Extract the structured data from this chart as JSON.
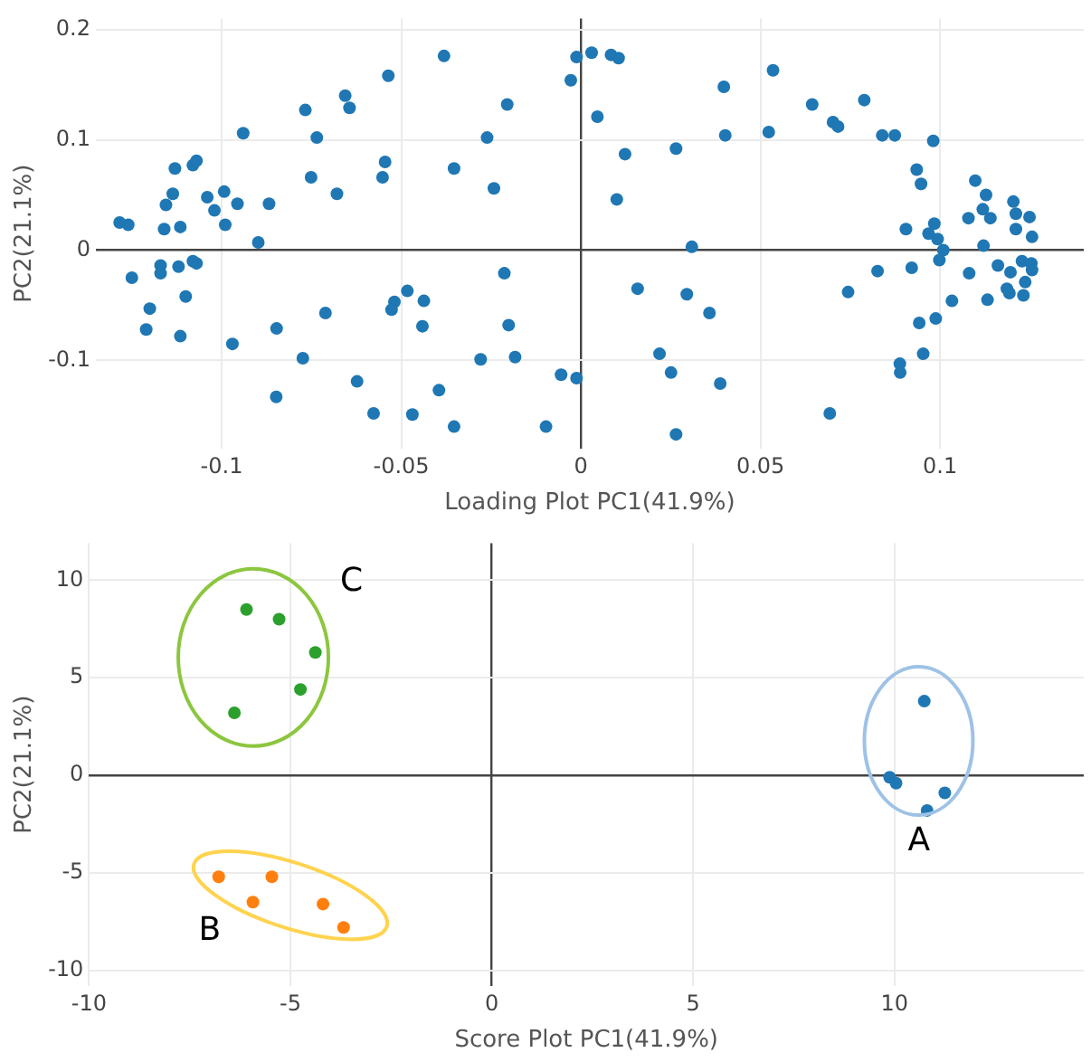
{
  "chart_data": [
    {
      "type": "scatter",
      "xlabel": "Loading Plot PC1(41.9%)",
      "ylabel": "PC2(21.1%)",
      "xlim": [
        -0.135,
        0.14
      ],
      "ylim": [
        -0.18,
        0.21
      ],
      "xticks": [
        -0.1,
        -0.05,
        0,
        0.05,
        0.1
      ],
      "yticks": [
        -0.1,
        0,
        0.1,
        0.2
      ],
      "grid": true,
      "legend": false,
      "marker": "circle",
      "series": [
        {
          "color": "#1f77b4",
          "x": [
            -0.1284,
            -0.126,
            -0.125,
            -0.12,
            -0.121,
            -0.113,
            -0.1155,
            -0.1136,
            -0.116,
            -0.1115,
            -0.117,
            -0.117,
            -0.112,
            -0.11,
            -0.1115,
            -0.108,
            -0.107,
            -0.108,
            -0.107,
            -0.104,
            -0.102,
            -0.0993,
            -0.099,
            -0.0956,
            -0.094,
            -0.097,
            -0.0898,
            -0.0868,
            -0.0847,
            -0.0848,
            -0.0767,
            -0.0735,
            -0.0751,
            -0.0774,
            -0.0711,
            -0.0679,
            -0.0656,
            -0.0644,
            -0.0623,
            -0.0577,
            -0.0536,
            -0.0545,
            -0.0552,
            -0.0483,
            -0.0519,
            -0.0527,
            -0.0437,
            -0.0441,
            -0.0469,
            -0.0381,
            -0.0353,
            -0.0395,
            -0.0353,
            -0.0261,
            -0.0242,
            -0.0279,
            -0.0205,
            -0.0213,
            -0.0201,
            -0.0183,
            -0.0097,
            -0.0055,
            -0.0012,
            -0.0028,
            -0.0012,
            0.003,
            0.0084,
            0.0105,
            0.0046,
            0.0123,
            0.01,
            0.0265,
            0.0309,
            0.0158,
            0.0295,
            0.0358,
            0.0219,
            0.0251,
            0.0388,
            0.0265,
            0.0398,
            0.0402,
            0.0523,
            0.0535,
            0.0644,
            0.0702,
            0.0716,
            0.0789,
            0.0839,
            0.0874,
            0.0981,
            0.0935,
            0.0947,
            0.1098,
            0.1128,
            0.1119,
            0.114,
            0.1079,
            0.1204,
            0.1211,
            0.1249,
            0.1211,
            0.1256,
            0.0905,
            0.0984,
            0.0968,
            0.0993,
            0.1009,
            0.0998,
            0.1121,
            0.0826,
            0.0921,
            0.0744,
            0.1081,
            0.1161,
            0.1196,
            0.1228,
            0.1254,
            0.1256,
            0.1237,
            0.1186,
            0.1193,
            0.1232,
            0.1132,
            0.1033,
            0.0942,
            0.0988,
            0.0953,
            0.0888,
            0.0889,
            0.0693
          ],
          "values": [
            0.025,
            0.023,
            -0.025,
            -0.053,
            -0.072,
            0.074,
            0.041,
            0.051,
            0.019,
            0.021,
            -0.014,
            -0.021,
            -0.015,
            -0.042,
            -0.078,
            0.077,
            0.081,
            -0.01,
            -0.012,
            0.048,
            0.036,
            0.053,
            0.023,
            0.042,
            0.106,
            -0.085,
            0.007,
            0.042,
            -0.071,
            -0.133,
            0.127,
            0.102,
            0.066,
            -0.098,
            -0.057,
            0.051,
            0.14,
            0.129,
            -0.119,
            -0.148,
            0.158,
            0.08,
            0.066,
            -0.037,
            -0.047,
            -0.054,
            -0.046,
            -0.069,
            -0.149,
            0.176,
            0.074,
            -0.127,
            -0.16,
            0.102,
            0.056,
            -0.099,
            0.132,
            -0.021,
            -0.068,
            -0.097,
            -0.16,
            -0.113,
            -0.116,
            0.154,
            0.175,
            0.179,
            0.177,
            0.174,
            0.121,
            0.087,
            0.046,
            0.092,
            0.003,
            -0.035,
            -0.04,
            -0.057,
            -0.094,
            -0.111,
            -0.121,
            -0.167,
            0.148,
            0.104,
            0.107,
            0.163,
            0.132,
            0.116,
            0.112,
            0.136,
            0.104,
            0.104,
            0.099,
            0.073,
            0.06,
            0.063,
            0.05,
            0.037,
            0.029,
            0.029,
            0.044,
            0.033,
            0.03,
            0.019,
            0.012,
            0.019,
            0.024,
            0.015,
            0.01,
            0,
            -0.009,
            0.004,
            -0.019,
            -0.016,
            -0.038,
            -0.021,
            -0.014,
            -0.02,
            -0.01,
            -0.012,
            -0.018,
            -0.029,
            -0.035,
            -0.039,
            -0.041,
            -0.045,
            -0.046,
            -0.066,
            -0.062,
            -0.094,
            -0.103,
            -0.111,
            -0.148
          ]
        }
      ]
    },
    {
      "type": "scatter",
      "xlabel": "Score Plot PC1(41.9%)",
      "ylabel": "PC2(21.1%)",
      "xlim": [
        -10,
        14.7
      ],
      "ylim": [
        -10.8,
        11.9
      ],
      "xticks": [
        -10,
        -5,
        0,
        5,
        10
      ],
      "yticks": [
        -10,
        -5,
        0,
        5,
        10
      ],
      "grid": true,
      "legend": false,
      "marker": "circle",
      "series": [
        {
          "name": "A",
          "color": "#1f77b4",
          "x": [
            10.74,
            9.88,
            10.04,
            11.25,
            10.81
          ],
          "values": [
            3.8,
            -0.1,
            -0.4,
            -0.9,
            -1.8
          ]
        },
        {
          "name": "B",
          "color": "#ff7f0e",
          "x": [
            -6.78,
            -5.46,
            -5.93,
            -4.19,
            -3.68
          ],
          "values": [
            -5.2,
            -5.2,
            -6.5,
            -6.6,
            -7.8
          ]
        },
        {
          "name": "C",
          "color": "#2ca02c",
          "x": [
            -6.09,
            -5.28,
            -4.38,
            -4.75,
            -6.39
          ],
          "values": [
            8.5,
            8.0,
            6.3,
            4.4,
            3.2
          ]
        }
      ]
    }
  ]
}
